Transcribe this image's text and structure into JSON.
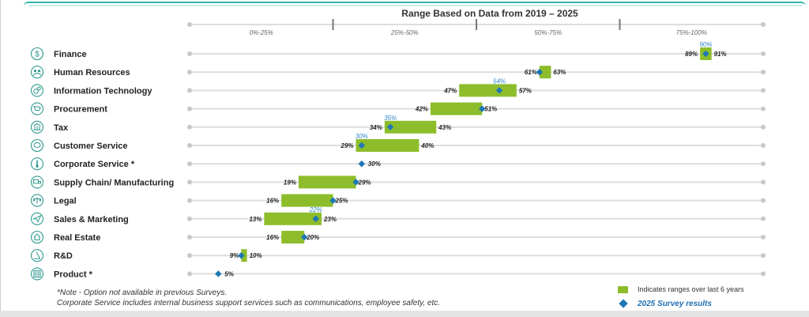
{
  "chart_data": {
    "type": "range_bar",
    "title": "Range Based on Data from 2019 – 2025",
    "xlim": [
      0,
      100
    ],
    "band_labels": [
      "0%-25%",
      "25%-50%",
      "50%-75%",
      "75%-100%"
    ],
    "band_edges": [
      25,
      50,
      75
    ],
    "rows": [
      {
        "label": "Finance",
        "icon": "dollar-icon",
        "low": 89,
        "high": 91,
        "low_label": "89%",
        "high_label": "91%",
        "survey": 90,
        "survey_label": "90%"
      },
      {
        "label": "Human Resources",
        "icon": "people-icon",
        "low": 61,
        "high": 63,
        "low_label": "61%",
        "high_label": "63%",
        "survey": 61,
        "survey_label": ""
      },
      {
        "label": "Information Technology",
        "icon": "gears-icon",
        "low": 47,
        "high": 57,
        "low_label": "47%",
        "high_label": "57%",
        "survey": 54,
        "survey_label": "54%"
      },
      {
        "label": "Procurement",
        "icon": "cart-icon",
        "low": 42,
        "high": 51,
        "low_label": "42%",
        "high_label": "51%",
        "survey": 51,
        "survey_label": ""
      },
      {
        "label": "Tax",
        "icon": "bank-icon",
        "low": 34,
        "high": 43,
        "low_label": "34%",
        "high_label": "43%",
        "survey": 35,
        "survey_label": "35%"
      },
      {
        "label": "Customer Service",
        "icon": "chat-icon",
        "low": 29,
        "high": 40,
        "low_label": "29%",
        "high_label": "40%",
        "survey": 30,
        "survey_label": "30%"
      },
      {
        "label": "Corporate Service *",
        "icon": "thermometer-icon",
        "low": null,
        "high": null,
        "low_label": "",
        "high_label": "30%",
        "survey": 30,
        "survey_label": ""
      },
      {
        "label": "Supply Chain/ Manufacturing",
        "icon": "truck-icon",
        "low": 19,
        "high": 29,
        "low_label": "19%",
        "high_label": "29%",
        "survey": 29,
        "survey_label": ""
      },
      {
        "label": "Legal",
        "icon": "scales-icon",
        "low": 16,
        "high": 25,
        "low_label": "16%",
        "high_label": "25%",
        "survey": 25,
        "survey_label": ""
      },
      {
        "label": "Sales & Marketing",
        "icon": "paper-plane-icon",
        "low": 13,
        "high": 23,
        "low_label": "13%",
        "high_label": "23%",
        "survey": 22,
        "survey_label": "22%"
      },
      {
        "label": "Real Estate",
        "icon": "house-icon",
        "low": 16,
        "high": 20,
        "low_label": "16%",
        "high_label": "20%",
        "survey": 20,
        "survey_label": ""
      },
      {
        "label": "R&D",
        "icon": "microscope-icon",
        "low": 9,
        "high": 10,
        "low_label": "9%",
        "high_label": "10%",
        "survey": 9,
        "survey_label": ""
      },
      {
        "label": "Product *",
        "icon": "grid-icon",
        "low": null,
        "high": null,
        "low_label": "",
        "high_label": "5%",
        "survey": 5,
        "survey_label": ""
      }
    ],
    "legend": {
      "range": "Indicates ranges over last 6 years",
      "survey": "2025 Survey results"
    },
    "colors": {
      "range": "#8dbd2b",
      "survey": "#1f77b4",
      "survey_label": "#2e86c8",
      "track": "#dddddd",
      "icon": "#2f9a8f"
    }
  },
  "notes": {
    "line1": "*Note - Option not available in previous Surveys.",
    "line2": "Corporate Service includes internal business support services such as communications, employee safety, etc."
  }
}
